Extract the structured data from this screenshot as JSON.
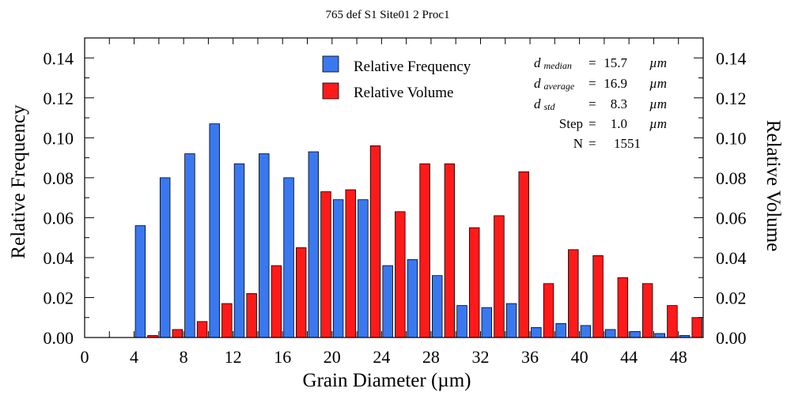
{
  "chart_data": {
    "type": "bar",
    "title": "765 def S1 Site01 2 Proc1",
    "xlabel": "Grain Diameter (µm)",
    "ylabel_left": "Relative Frequency",
    "ylabel_right": "Relative Volume",
    "xlim": [
      0,
      50
    ],
    "ylim": [
      0,
      0.15
    ],
    "x_ticks": [
      0,
      4,
      8,
      12,
      16,
      20,
      24,
      28,
      32,
      36,
      40,
      44,
      48
    ],
    "x_tick_labels": [
      "0",
      "4",
      "8",
      "12",
      "16",
      "20",
      "24",
      "28",
      "32",
      "36",
      "40",
      "44",
      "48"
    ],
    "y_ticks": [
      0,
      0.02,
      0.04,
      0.06,
      0.08,
      0.1,
      0.12,
      0.14
    ],
    "y_tick_labels": [
      "0.00",
      "0.02",
      "0.04",
      "0.06",
      "0.08",
      "0.10",
      "0.12",
      "0.14"
    ],
    "bin_width": 2,
    "bin_starts": [
      4,
      6,
      8,
      10,
      12,
      14,
      16,
      18,
      20,
      22,
      24,
      26,
      28,
      30,
      32,
      34,
      36,
      38,
      40,
      42,
      44,
      46,
      48
    ],
    "series": [
      {
        "name": "Relative Frequency",
        "color": "#3a78f0",
        "values": [
          0.056,
          0.08,
          0.092,
          0.107,
          0.087,
          0.092,
          0.08,
          0.093,
          0.069,
          0.069,
          0.036,
          0.039,
          0.031,
          0.016,
          0.015,
          0.017,
          0.005,
          0.007,
          0.006,
          0.004,
          0.003,
          0.002,
          0.001
        ]
      },
      {
        "name": "Relative Volume",
        "color": "#ff1a1a",
        "values": [
          0.001,
          0.004,
          0.008,
          0.017,
          0.022,
          0.036,
          0.045,
          0.073,
          0.074,
          0.096,
          0.063,
          0.087,
          0.087,
          0.055,
          0.061,
          0.083,
          0.027,
          0.044,
          0.041,
          0.03,
          0.027,
          0.016,
          0.01
        ]
      }
    ],
    "legend_position": "top-center",
    "stats": {
      "d_median": {
        "symbol": "d",
        "subscript": "median",
        "value": "15.7",
        "unit": "µm"
      },
      "d_average": {
        "symbol": "d",
        "subscript": "average",
        "value": "16.9",
        "unit": "µm"
      },
      "d_std": {
        "symbol": "d",
        "subscript": "std",
        "value": "8.3",
        "unit": "µm"
      },
      "step": {
        "label": "Step",
        "value": "1.0",
        "unit": "µm"
      },
      "n": {
        "label": "N",
        "value": "1551"
      },
      "equals": "="
    }
  }
}
